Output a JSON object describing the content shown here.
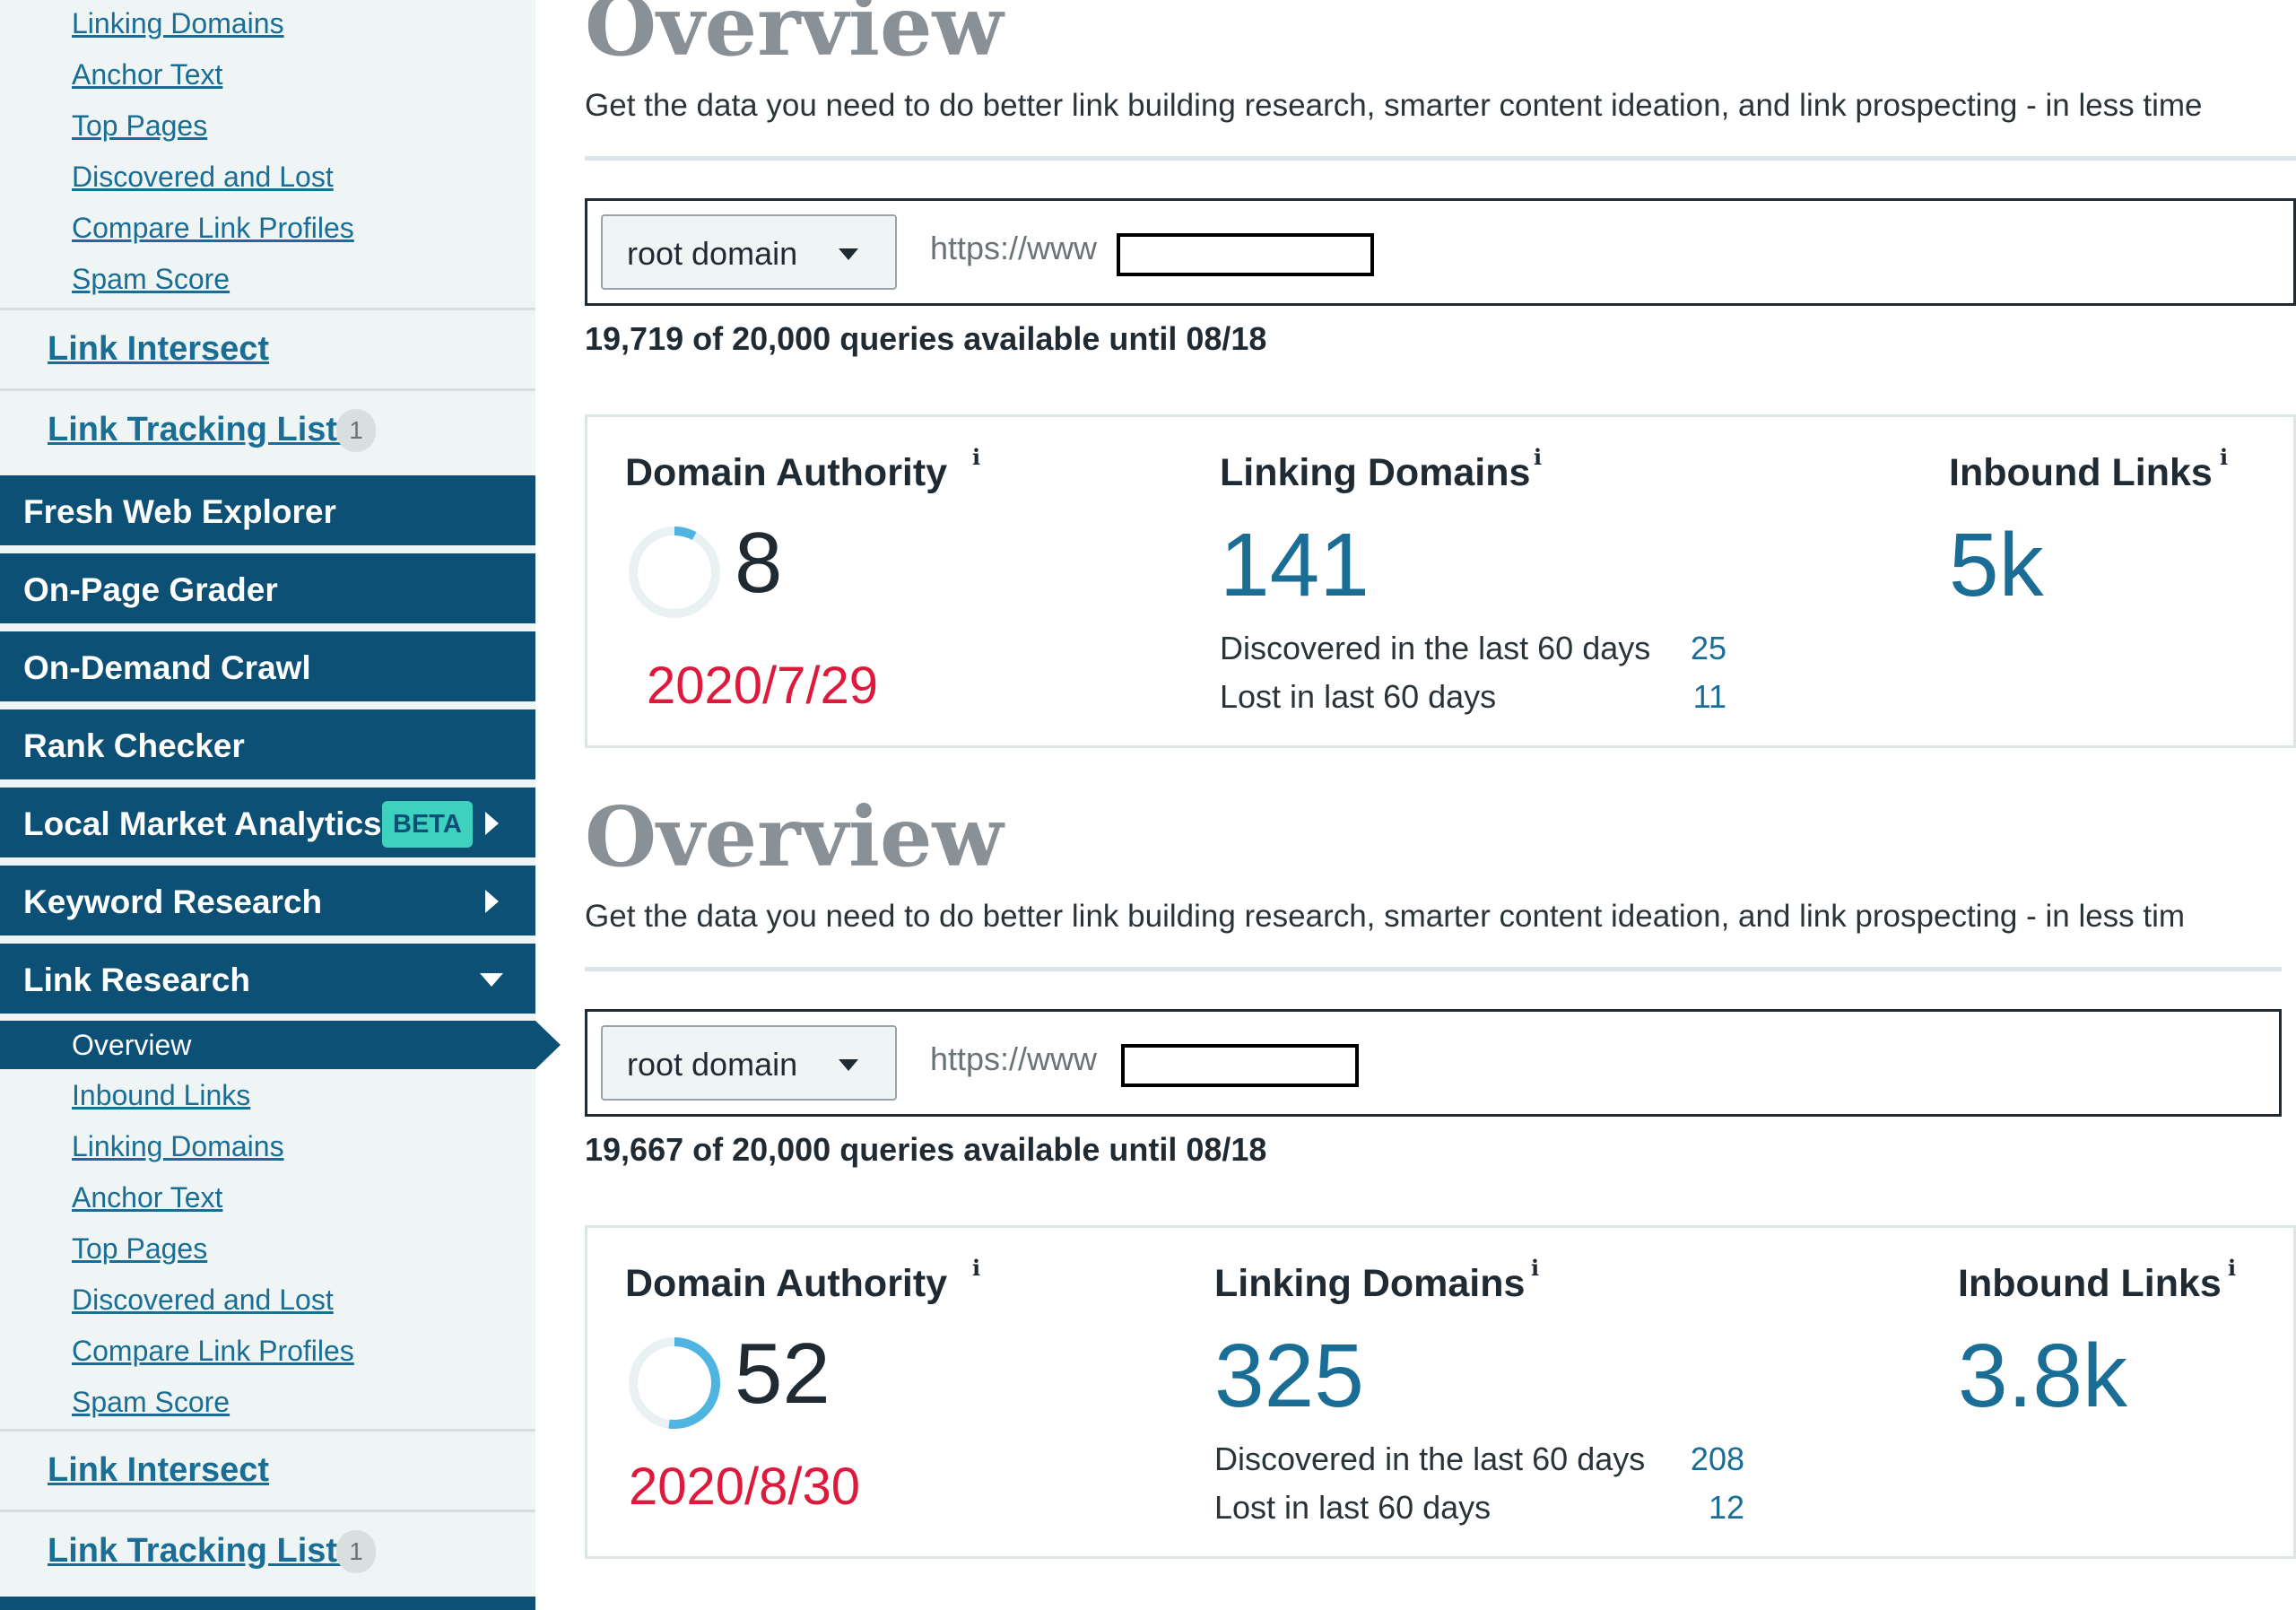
{
  "sidebar": {
    "top_subitems": [
      "Linking Domains",
      "Anchor Text",
      "Top Pages",
      "Discovered and Lost",
      "Compare Link Profiles",
      "Spam Score"
    ],
    "link_intersect": "Link Intersect",
    "link_tracking_lists": "Link Tracking Lists",
    "link_tracking_count": "1",
    "nav": {
      "fresh_web_explorer": "Fresh Web Explorer",
      "on_page_grader": "On-Page Grader",
      "on_demand_crawl": "On-Demand Crawl",
      "rank_checker": "Rank Checker",
      "local_market_analytics": "Local Market Analytics",
      "beta_badge": "BETA",
      "keyword_research": "Keyword Research",
      "link_research": "Link Research"
    },
    "active_item": "Overview",
    "bottom_subitems": [
      "Inbound Links",
      "Linking Domains",
      "Anchor Text",
      "Top Pages",
      "Discovered and Lost",
      "Compare Link Profiles",
      "Spam Score"
    ],
    "link_intersect_2": "Link Intersect",
    "link_tracking_lists_2": "Link Tracking Lists",
    "link_tracking_count_2": "1"
  },
  "panels": [
    {
      "title": "Overview",
      "description": "Get the data you need to do better link building research, smarter content ideation, and link prospecting - in less time",
      "scope_select": "root domain",
      "url_prefix": "https://www",
      "queries": "19,719 of 20,000 queries available until 08/18",
      "domain_authority_label": "Domain Authority",
      "domain_authority": "8",
      "domain_authority_progress": 0.08,
      "date": "2020/7/29",
      "linking_domains_label": "Linking Domains",
      "linking_domains": "141",
      "discovered_label": "Discovered in the last 60 days",
      "discovered": "25",
      "lost_label": "Lost in last 60 days",
      "lost": "11",
      "inbound_links_label": "Inbound Links",
      "inbound_links": "5k",
      "info_glyph": "i"
    },
    {
      "title": "Overview",
      "description": "Get the data you need to do better link building research, smarter content ideation, and link prospecting - in less tim",
      "scope_select": "root domain",
      "url_prefix": "https://www",
      "queries": "19,667 of 20,000 queries available until 08/18",
      "domain_authority_label": "Domain Authority",
      "domain_authority": "52",
      "domain_authority_progress": 0.52,
      "date": "2020/8/30",
      "linking_domains_label": "Linking Domains",
      "linking_domains": "325",
      "discovered_label": "Discovered in the last 60 days",
      "discovered": "208",
      "lost_label": "Lost in last 60 days",
      "lost": "12",
      "inbound_links_label": "Inbound Links",
      "inbound_links": "3.8k",
      "info_glyph": "i"
    }
  ],
  "colors": {
    "nav_bg": "#0d5075",
    "link_blue": "#1a6e96",
    "beta_teal": "#3ed1bd",
    "date_red": "#dd1a3c",
    "ring_fill": "#4fb5e0",
    "ring_track": "#e9f1f2"
  }
}
